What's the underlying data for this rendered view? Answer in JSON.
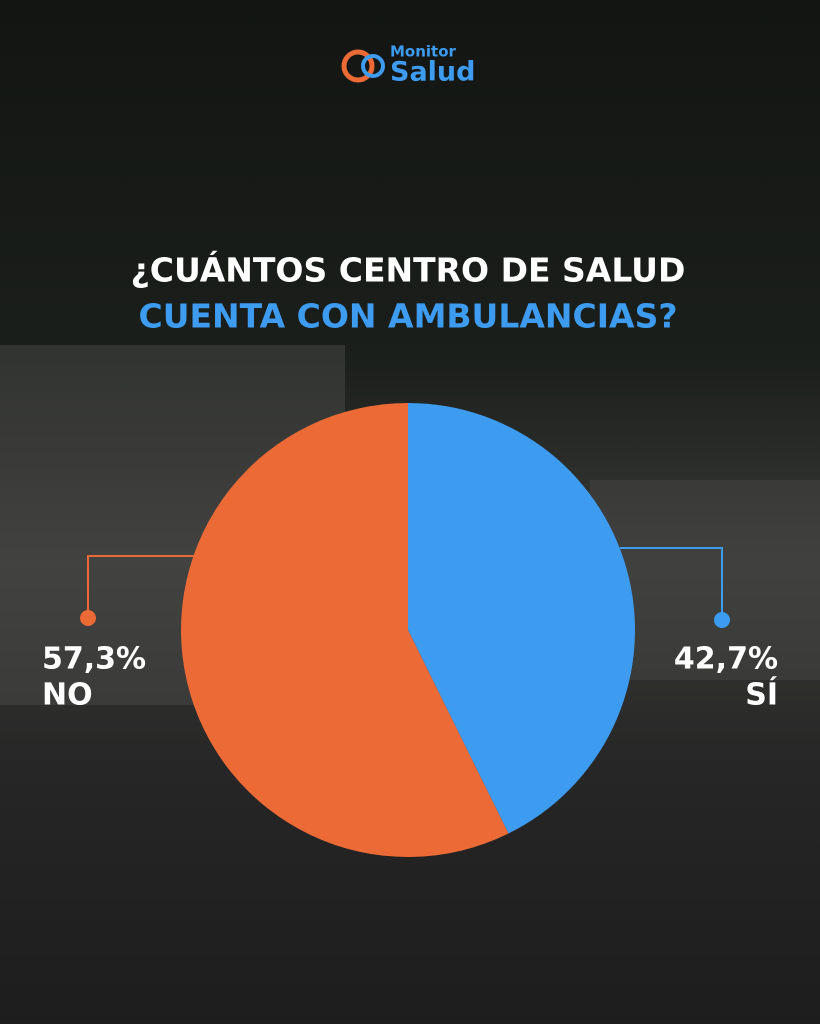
{
  "logo": {
    "line1": "Monitor",
    "line2": "Salud"
  },
  "chart_data": {
    "type": "pie",
    "title": "¿CUÁNTOS CENTRO DE SALUD",
    "subtitle": "CUENTA CON AMBULANCIAS?",
    "title_color": "#ffffff",
    "subtitle_color": "#3d9bf0",
    "categories": [
      "SÍ",
      "NO"
    ],
    "values": [
      42.7,
      57.3
    ],
    "value_labels": [
      "42,7%",
      "57,3%"
    ],
    "colors": [
      "#3d9bf0",
      "#ec6a35"
    ]
  }
}
